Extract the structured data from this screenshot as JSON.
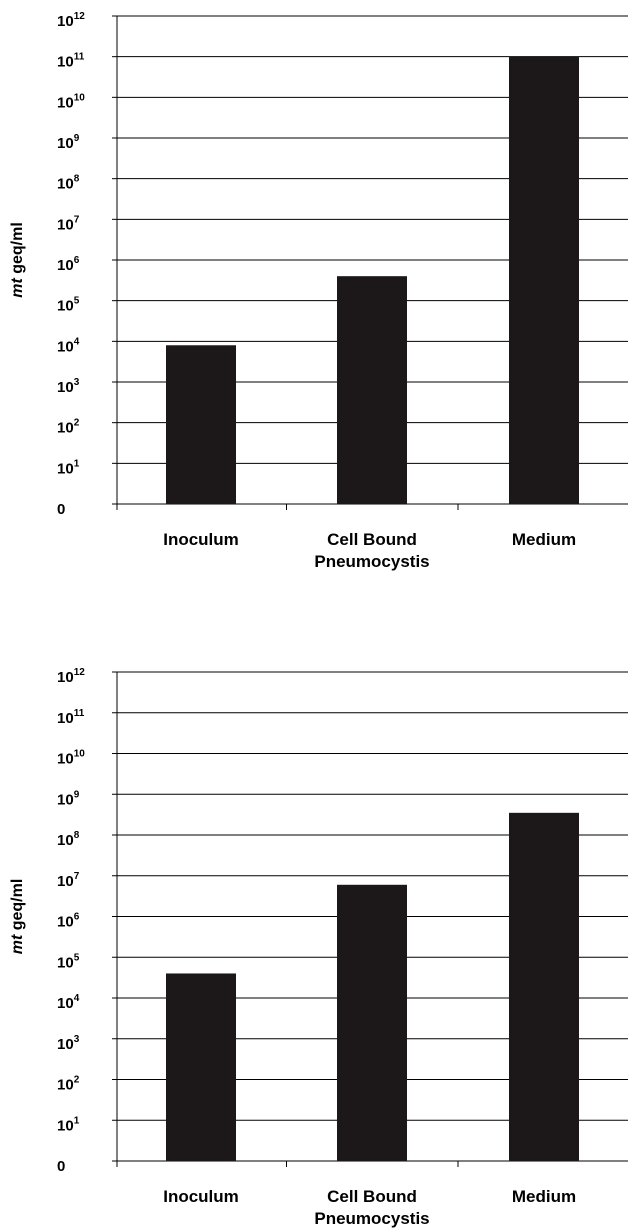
{
  "chart_data": [
    {
      "type": "bar",
      "categories": [
        "Inoculum",
        "Cell Bound Pneumocystis",
        "Medium"
      ],
      "category_lines": [
        [
          "Inoculum"
        ],
        [
          "Cell Bound",
          "Pneumocystis"
        ],
        [
          "Medium"
        ]
      ],
      "values": [
        8000,
        400000,
        100000000000
      ],
      "ylabel_italic": "mt",
      "ylabel_rest": " geq/ml",
      "yscale": "log",
      "ylim": [
        1,
        1000000000000
      ],
      "y_ticks": [
        {
          "base": "0",
          "exp": ""
        },
        {
          "base": "10",
          "exp": "1"
        },
        {
          "base": "10",
          "exp": "2"
        },
        {
          "base": "10",
          "exp": "3"
        },
        {
          "base": "10",
          "exp": "4"
        },
        {
          "base": "10",
          "exp": "5"
        },
        {
          "base": "10",
          "exp": "6"
        },
        {
          "base": "10",
          "exp": "7"
        },
        {
          "base": "10",
          "exp": "8"
        },
        {
          "base": "10",
          "exp": "9"
        },
        {
          "base": "10",
          "exp": "10"
        },
        {
          "base": "10",
          "exp": "11"
        },
        {
          "base": "10",
          "exp": "12"
        }
      ],
      "grid": true,
      "bar_color": "#1c1718"
    },
    {
      "type": "bar",
      "categories": [
        "Inoculum",
        "Cell Bound Pneumocystis",
        "Medium"
      ],
      "category_lines": [
        [
          "Inoculum"
        ],
        [
          "Cell Bound",
          "Pneumocystis"
        ],
        [
          "Medium"
        ]
      ],
      "values": [
        40000,
        6000000,
        350000000
      ],
      "ylabel_italic": "mt",
      "ylabel_rest": " geq/ml",
      "yscale": "log",
      "ylim": [
        1,
        1000000000000
      ],
      "y_ticks": [
        {
          "base": "0",
          "exp": ""
        },
        {
          "base": "10",
          "exp": "1"
        },
        {
          "base": "10",
          "exp": "2"
        },
        {
          "base": "10",
          "exp": "3"
        },
        {
          "base": "10",
          "exp": "4"
        },
        {
          "base": "10",
          "exp": "5"
        },
        {
          "base": "10",
          "exp": "6"
        },
        {
          "base": "10",
          "exp": "7"
        },
        {
          "base": "10",
          "exp": "8"
        },
        {
          "base": "10",
          "exp": "9"
        },
        {
          "base": "10",
          "exp": "10"
        },
        {
          "base": "10",
          "exp": "11"
        },
        {
          "base": "10",
          "exp": "12"
        }
      ],
      "grid": true,
      "bar_color": "#1c1718"
    }
  ]
}
